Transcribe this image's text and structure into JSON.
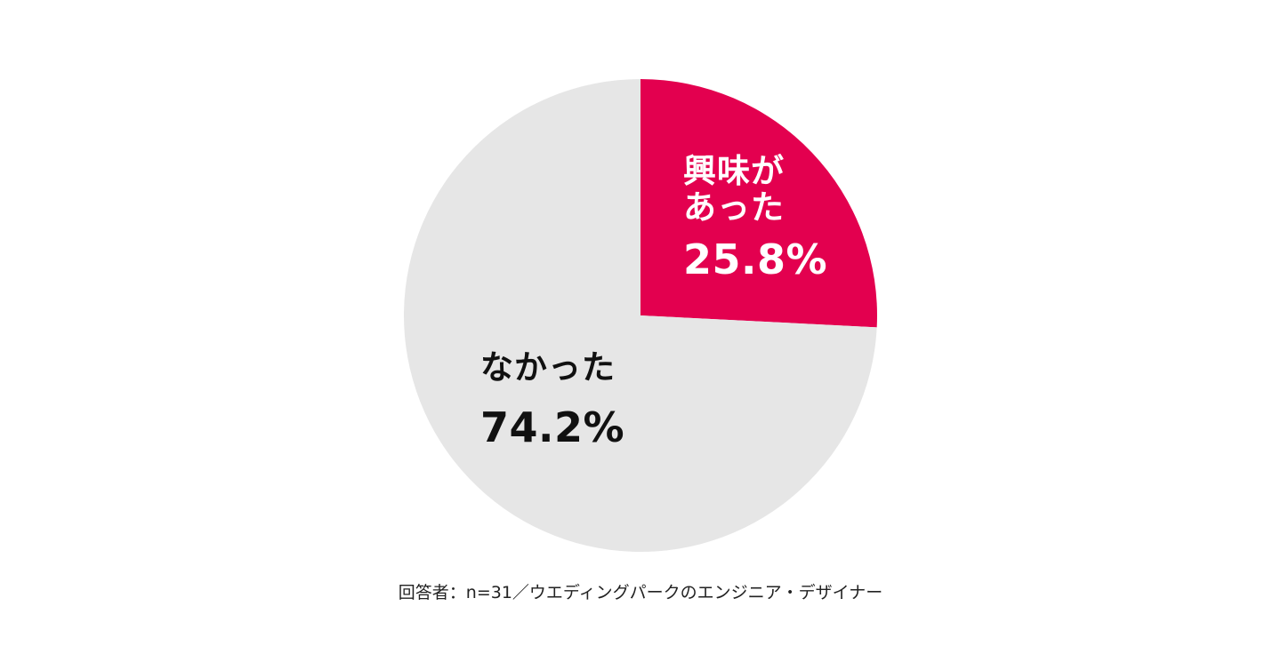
{
  "chart_data": {
    "type": "pie",
    "slices": [
      {
        "label_lines": [
          "興味が",
          "あった"
        ],
        "value": 25.8,
        "value_label": "25.8%",
        "color": "#e3004f"
      },
      {
        "label_lines": [
          "なかった"
        ],
        "value": 74.2,
        "value_label": "74.2%",
        "color": "#e6e6e6"
      }
    ],
    "start": "12 o'clock",
    "direction": "clockwise"
  },
  "footnote": "回答者：n=31／ウエディングパークのエンジニア・デザイナー"
}
